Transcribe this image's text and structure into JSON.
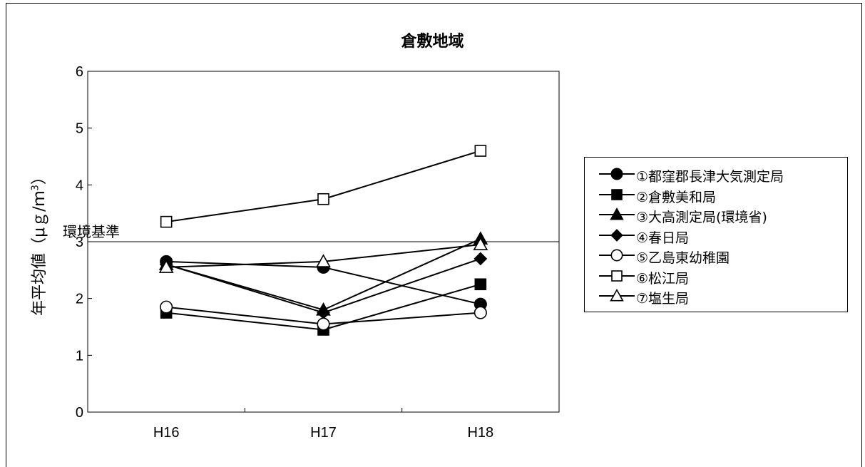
{
  "chart_data": {
    "type": "line",
    "title": "倉敷地域",
    "ylabel_main": "年平均値（μｇ/ｍ",
    "ylabel_sup": "3",
    "ylabel_end": "）",
    "categories": [
      "H16",
      "H17",
      "H18"
    ],
    "ylim": [
      0,
      6
    ],
    "yticks": [
      0,
      1,
      2,
      3,
      4,
      5,
      6
    ],
    "reference_line": {
      "label": "環境基準",
      "value": 3
    },
    "series": [
      {
        "name": "①都窪郡長津大気測定局",
        "marker": "circle",
        "fill": "filled",
        "values": [
          2.65,
          2.55,
          1.9
        ]
      },
      {
        "name": "②倉敷美和局",
        "marker": "square",
        "fill": "filled",
        "values": [
          1.75,
          1.45,
          2.25
        ]
      },
      {
        "name": "③大高測定局(環境省)",
        "marker": "triangle",
        "fill": "filled",
        "values": [
          2.6,
          1.8,
          3.05
        ]
      },
      {
        "name": "④春日局",
        "marker": "diamond",
        "fill": "filled",
        "values": [
          2.6,
          1.75,
          2.7
        ]
      },
      {
        "name": "⑤乙島東幼稚園",
        "marker": "circle",
        "fill": "open",
        "values": [
          1.85,
          1.55,
          1.75
        ]
      },
      {
        "name": "⑥松江局",
        "marker": "square",
        "fill": "open",
        "values": [
          3.35,
          3.75,
          4.6
        ]
      },
      {
        "name": "⑦塩生局",
        "marker": "triangle",
        "fill": "open",
        "values": [
          2.55,
          2.65,
          2.95
        ]
      }
    ],
    "legend_position": "right",
    "grid": false
  }
}
